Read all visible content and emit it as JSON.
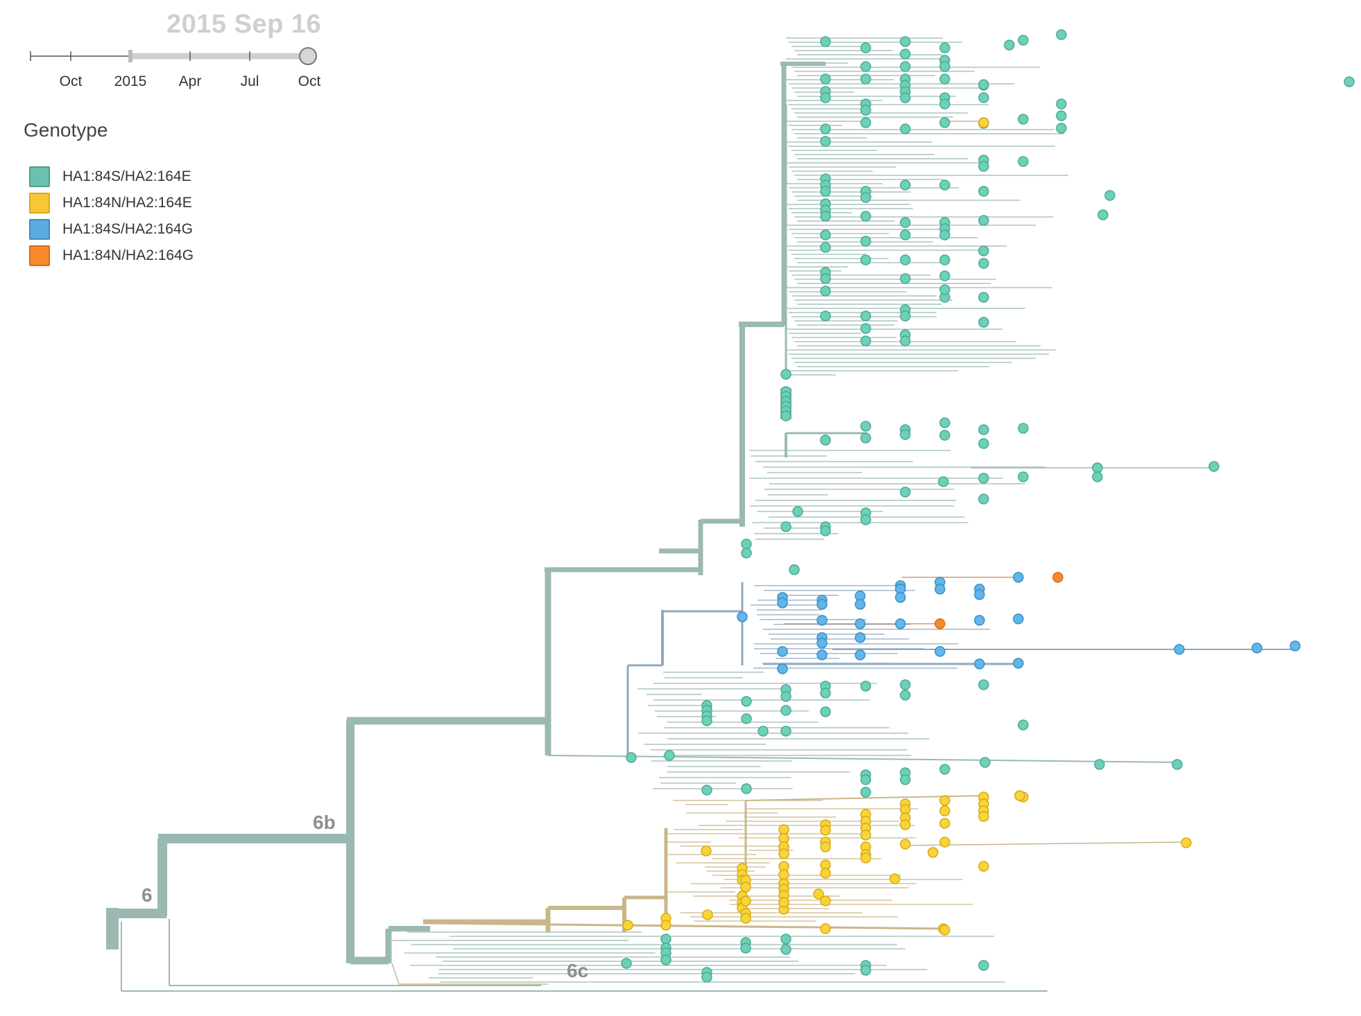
{
  "date_display": "2015 Sep 16",
  "timeline": {
    "ticks": [
      "Oct",
      "2015",
      "Apr",
      "Jul",
      "Oct"
    ],
    "selected_end": "2015 Sep 16"
  },
  "legend": {
    "title": "Genotype",
    "items": [
      {
        "label": "HA1:84S/HA2:164E",
        "color": "#6bc1b0",
        "stroke": "#4d9d8e"
      },
      {
        "label": "HA1:84N/HA2:164E",
        "color": "#f6c836",
        "stroke": "#d9a81b"
      },
      {
        "label": "HA1:84S/HA2:164G",
        "color": "#5aace0",
        "stroke": "#3c8cc0"
      },
      {
        "label": "HA1:84N/HA2:164G",
        "color": "#f98a2b",
        "stroke": "#d96b12"
      }
    ]
  },
  "clades": [
    "6",
    "6b",
    "6c"
  ],
  "colors": {
    "branch_teal": "#9bb9b2",
    "branch_blue": "#8fa9bf",
    "branch_yellow": "#c9b68a",
    "branch_orange": "#d89a72",
    "tip_teal": "#6bd1b8",
    "tip_yellow": "#f8d33a",
    "tip_blue": "#62b6ea",
    "tip_orange": "#f98a2b"
  }
}
